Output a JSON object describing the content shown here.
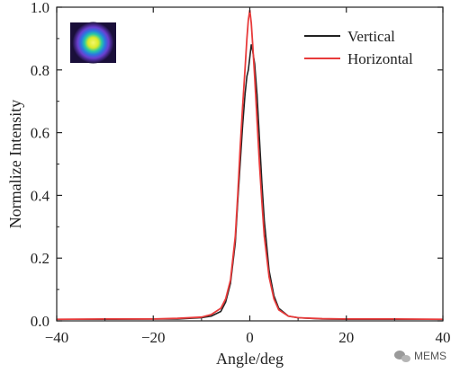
{
  "chart_data": {
    "type": "line",
    "title": "",
    "xlabel": "Angle/deg",
    "ylabel": "Normalize Intensity",
    "xlim": [
      -40,
      40
    ],
    "ylim": [
      0.0,
      1.0
    ],
    "xticks": [
      -40,
      -20,
      0,
      20,
      40
    ],
    "xtick_labels": [
      "−40",
      "−20",
      "0",
      "20",
      "40"
    ],
    "yticks": [
      0.0,
      0.2,
      0.4,
      0.6,
      0.8,
      1.0
    ],
    "ytick_labels": [
      "0.0",
      "0.2",
      "0.4",
      "0.6",
      "0.8",
      "1.0"
    ],
    "legend_position": "top-right",
    "inset": "beam-spot-image",
    "series": [
      {
        "name": "Vertical",
        "color": "#222222",
        "x": [
          -40,
          -30,
          -20,
          -15,
          -10,
          -8,
          -6,
          -5,
          -4,
          -3,
          -2.5,
          -2,
          -1.5,
          -1,
          -0.6,
          -0.3,
          0,
          0.3,
          0.6,
          1,
          1.5,
          2,
          2.5,
          3,
          4,
          5,
          6,
          8,
          10,
          15,
          20,
          30,
          40
        ],
        "y": [
          0.005,
          0.005,
          0.006,
          0.006,
          0.01,
          0.015,
          0.03,
          0.06,
          0.12,
          0.25,
          0.38,
          0.5,
          0.62,
          0.72,
          0.78,
          0.8,
          0.84,
          0.88,
          0.86,
          0.82,
          0.72,
          0.58,
          0.44,
          0.32,
          0.16,
          0.08,
          0.04,
          0.015,
          0.01,
          0.006,
          0.005,
          0.005,
          0.005
        ]
      },
      {
        "name": "Horizontal",
        "color": "#e83b3b",
        "x": [
          -40,
          -30,
          -20,
          -15,
          -10,
          -8,
          -6,
          -5,
          -4,
          -3,
          -2.5,
          -2,
          -1.5,
          -1,
          -0.6,
          -0.3,
          0,
          0.3,
          0.6,
          1,
          1.5,
          2,
          2.5,
          3,
          4,
          5,
          6,
          8,
          10,
          15,
          20,
          30,
          40
        ],
        "y": [
          0.005,
          0.006,
          0.006,
          0.008,
          0.012,
          0.02,
          0.04,
          0.07,
          0.13,
          0.27,
          0.4,
          0.55,
          0.68,
          0.8,
          0.9,
          0.96,
          0.99,
          0.95,
          0.88,
          0.78,
          0.64,
          0.5,
          0.38,
          0.27,
          0.14,
          0.07,
          0.035,
          0.015,
          0.01,
          0.007,
          0.006,
          0.006,
          0.005
        ]
      }
    ]
  },
  "watermark": {
    "label": "MEMS",
    "icon": "wechat-icon"
  }
}
